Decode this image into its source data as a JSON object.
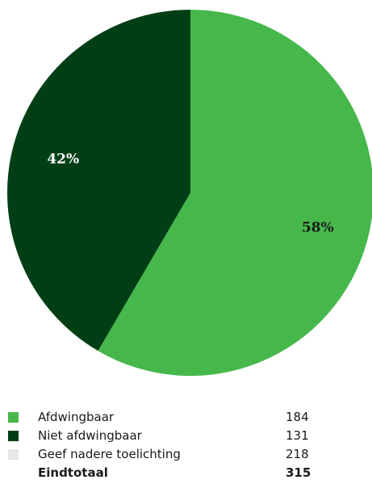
{
  "chart_data": {
    "type": "pie",
    "categories": [
      "Afdwingbaar",
      "Niet afdwingbaar"
    ],
    "values": [
      184,
      131
    ],
    "percent_labels": [
      "58%",
      "42%"
    ],
    "colors": [
      "#46b84b",
      "#003f15"
    ],
    "label_colors": [
      "#1a1a1a",
      "#ffffff"
    ],
    "legend": [
      {
        "label": "Afdwingbaar",
        "value": "184",
        "color": "#46b84b"
      },
      {
        "label": "Niet afdwingbaar",
        "value": "131",
        "color": "#003f15"
      },
      {
        "label": "Geef nadere toelichting",
        "value": "218",
        "color": "#e6e6e6"
      }
    ],
    "total": {
      "label": "Eindtotaal",
      "value": "315"
    },
    "legend_position": "bottom"
  }
}
